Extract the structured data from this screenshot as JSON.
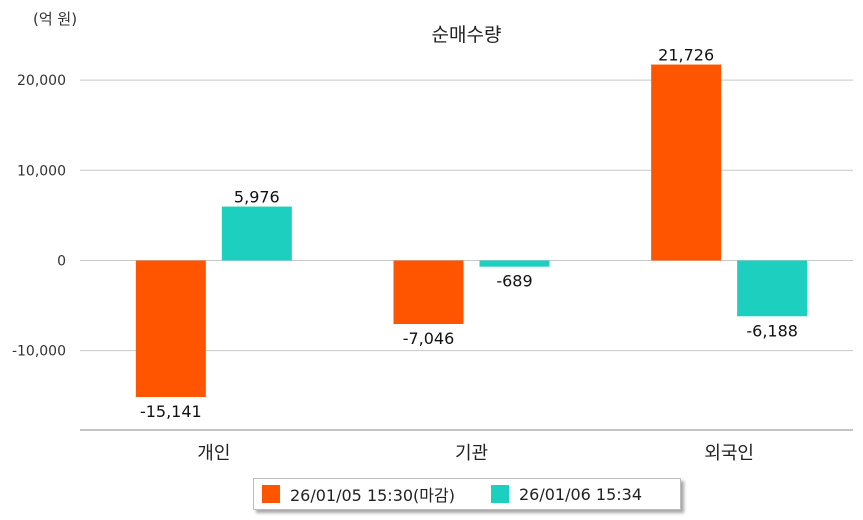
{
  "unit_label": "(억 원)",
  "chart_data": {
    "type": "bar",
    "title": "순매수량",
    "ylabel": "(억 원)",
    "categories": [
      "개인",
      "기관",
      "외국인"
    ],
    "series": [
      {
        "name": "26/01/05 15:30(마감)",
        "color": "#ff5500",
        "values": [
          -15141,
          -7046,
          21726
        ],
        "labels": [
          "-15,141",
          "-7,046",
          "21,726"
        ]
      },
      {
        "name": "26/01/06 15:34",
        "color": "#1ccfbe",
        "values": [
          5976,
          -689,
          -6188
        ],
        "labels": [
          "5,976",
          "-689",
          "-6,188"
        ]
      }
    ],
    "yticks": [
      20000,
      10000,
      0,
      -10000
    ],
    "ytick_labels": [
      "20,000",
      "10,000",
      "0",
      "-10,000"
    ],
    "ylim": [
      -18800,
      26000
    ],
    "grid": true,
    "legend": "bottom"
  }
}
